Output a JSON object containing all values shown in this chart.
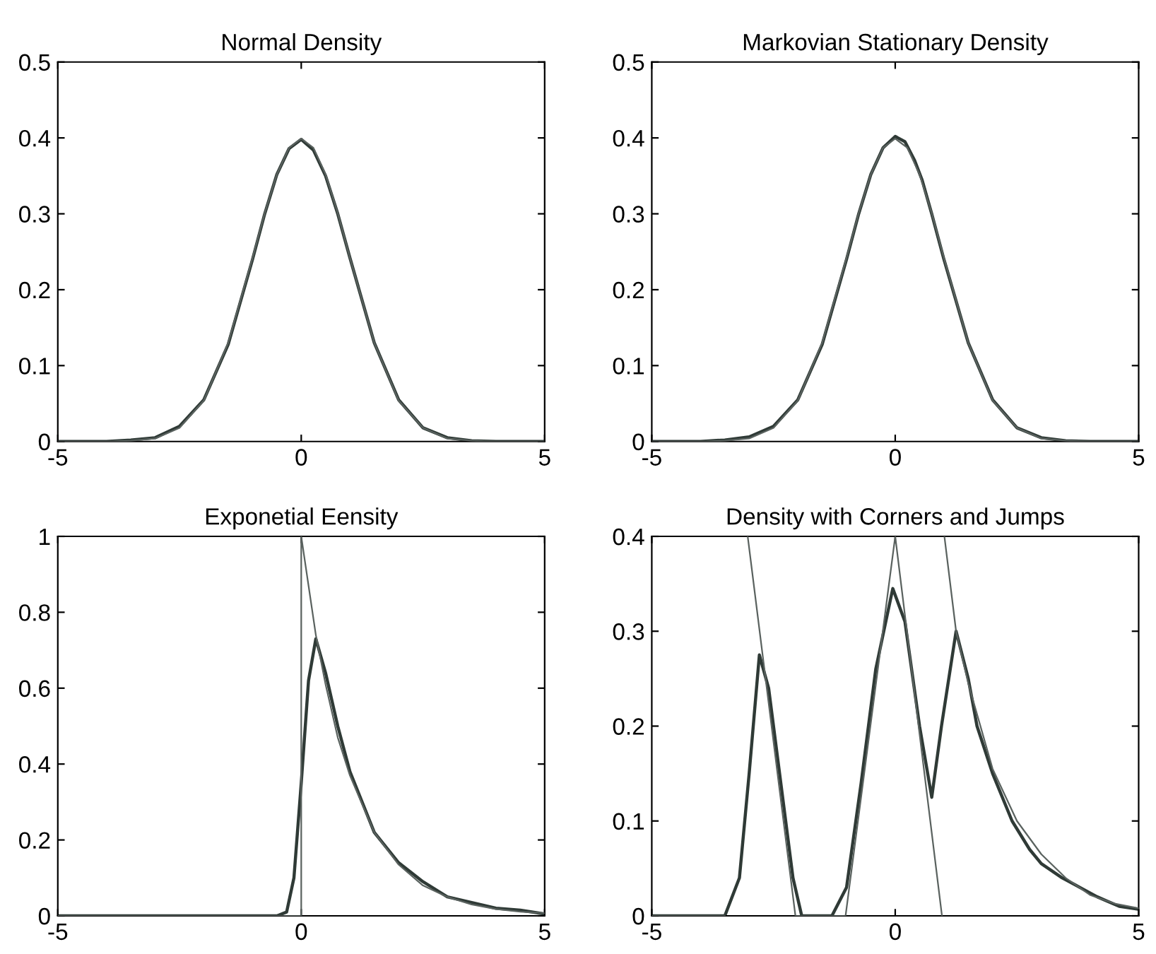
{
  "chart_data": [
    {
      "type": "line",
      "title": "Normal Density",
      "xlim": [
        -5,
        5
      ],
      "ylim": [
        0,
        0.5
      ],
      "xticks": [
        -5,
        0,
        5
      ],
      "yticks": [
        0,
        0.1,
        0.2,
        0.3,
        0.4,
        0.5
      ],
      "series": [
        {
          "color": "#2f3a36",
          "x": [
            -5,
            -4,
            -3.5,
            -3,
            -2.5,
            -2,
            -1.5,
            -1,
            -0.75,
            -0.5,
            -0.25,
            0,
            0.25,
            0.5,
            0.75,
            1,
            1.5,
            2,
            2.5,
            3,
            3.5,
            4,
            5
          ],
          "values": [
            0,
            0,
            0.002,
            0.005,
            0.02,
            0.055,
            0.128,
            0.24,
            0.3,
            0.352,
            0.386,
            0.398,
            0.384,
            0.35,
            0.3,
            0.242,
            0.13,
            0.055,
            0.018,
            0.005,
            0.001,
            0,
            0
          ]
        },
        {
          "color": "#5a625f",
          "x": [
            -5,
            -4,
            -3.5,
            -3,
            -2.5,
            -2,
            -1.5,
            -1,
            -0.75,
            -0.5,
            -0.25,
            0,
            0.25,
            0.5,
            0.75,
            1,
            1.5,
            2,
            2.5,
            3,
            3.5,
            4,
            5
          ],
          "values": [
            0,
            0,
            0.001,
            0.004,
            0.018,
            0.054,
            0.13,
            0.242,
            0.301,
            0.352,
            0.387,
            0.399,
            0.387,
            0.352,
            0.301,
            0.242,
            0.13,
            0.054,
            0.018,
            0.004,
            0.001,
            0,
            0
          ]
        }
      ]
    },
    {
      "type": "line",
      "title": "Markovian Stationary Density",
      "xlim": [
        -5,
        5
      ],
      "ylim": [
        0,
        0.5
      ],
      "xticks": [
        -5,
        0,
        5
      ],
      "yticks": [
        0,
        0.1,
        0.2,
        0.3,
        0.4,
        0.5
      ],
      "series": [
        {
          "color": "#2f3a36",
          "x": [
            -5,
            -4,
            -3.5,
            -3,
            -2.5,
            -2,
            -1.5,
            -1,
            -0.75,
            -0.5,
            -0.25,
            0,
            0.2,
            0.4,
            0.55,
            0.75,
            1,
            1.5,
            2,
            2.5,
            3,
            3.5,
            4,
            5
          ],
          "values": [
            0,
            0,
            0.002,
            0.006,
            0.02,
            0.055,
            0.128,
            0.24,
            0.3,
            0.352,
            0.387,
            0.402,
            0.395,
            0.37,
            0.345,
            0.3,
            0.24,
            0.13,
            0.055,
            0.018,
            0.005,
            0.001,
            0,
            0
          ]
        },
        {
          "color": "#5a625f",
          "x": [
            -5,
            -4,
            -3.5,
            -3,
            -2.5,
            -2,
            -1.5,
            -1,
            -0.75,
            -0.5,
            -0.25,
            0,
            0.25,
            0.5,
            0.75,
            1,
            1.5,
            2,
            2.5,
            3,
            3.5,
            4,
            5
          ],
          "values": [
            0,
            0,
            0.001,
            0.004,
            0.018,
            0.054,
            0.13,
            0.242,
            0.301,
            0.352,
            0.387,
            0.399,
            0.387,
            0.352,
            0.301,
            0.242,
            0.13,
            0.054,
            0.018,
            0.004,
            0.001,
            0,
            0
          ]
        }
      ]
    },
    {
      "type": "line",
      "title": "Exponetial Eensity",
      "xlim": [
        -5,
        5
      ],
      "ylim": [
        0,
        1
      ],
      "xticks": [
        -5,
        0,
        5
      ],
      "yticks": [
        0,
        0.2,
        0.4,
        0.6,
        0.8,
        1
      ],
      "series": [
        {
          "color": "#2f3a36",
          "x": [
            -5,
            -0.5,
            -0.3,
            -0.15,
            0,
            0.15,
            0.3,
            0.5,
            0.75,
            1,
            1.5,
            2,
            2.5,
            3,
            3.5,
            4,
            4.5,
            5
          ],
          "values": [
            0,
            0,
            0.01,
            0.1,
            0.35,
            0.62,
            0.73,
            0.64,
            0.5,
            0.38,
            0.22,
            0.14,
            0.09,
            0.05,
            0.035,
            0.02,
            0.015,
            0.005
          ]
        },
        {
          "color": "#5a625f",
          "x": [
            -5,
            0,
            0,
            0.3,
            0.5,
            0.75,
            1,
            1.5,
            2,
            2.5,
            3,
            3.5,
            4,
            4.5,
            5
          ],
          "values": [
            0,
            0,
            1,
            0.74,
            0.61,
            0.47,
            0.37,
            0.22,
            0.135,
            0.08,
            0.05,
            0.03,
            0.018,
            0.011,
            0.007
          ]
        }
      ]
    },
    {
      "type": "line",
      "title": "Density with Corners and Jumps",
      "xlim": [
        -5,
        5
      ],
      "ylim": [
        0,
        0.4
      ],
      "xticks": [
        -5,
        0,
        5
      ],
      "yticks": [
        0,
        0.1,
        0.2,
        0.3,
        0.4
      ],
      "series": [
        {
          "color": "#2f3a36",
          "x": [
            -5,
            -3.5,
            -3.2,
            -3,
            -2.79,
            -2.6,
            -2.3,
            -2.1,
            -1.92,
            -1.3,
            -1,
            -0.7,
            -0.4,
            -0.05,
            0.2,
            0.5,
            0.75,
            0.95,
            1.25,
            1.5,
            1.68,
            2,
            2.4,
            2.76,
            3,
            3.43,
            4.15,
            4.6,
            5
          ],
          "values": [
            0,
            0,
            0.04,
            0.15,
            0.275,
            0.24,
            0.12,
            0.04,
            0,
            0,
            0.03,
            0.14,
            0.26,
            0.345,
            0.31,
            0.2,
            0.125,
            0.2,
            0.3,
            0.25,
            0.2,
            0.15,
            0.1,
            0.07,
            0.055,
            0.04,
            0.02,
            0.01,
            0.007
          ]
        },
        {
          "color": "#5a625f",
          "x": [
            -5,
            -3.5,
            null,
            -3.03,
            -2.05,
            -1.02,
            0,
            0.96,
            null,
            1.01,
            1.25,
            1.5,
            2,
            2.5,
            3,
            3.5,
            4,
            4.5,
            5
          ],
          "values": [
            0,
            0,
            null,
            0.4,
            0,
            0,
            0.4,
            0,
            null,
            0.4,
            0.3,
            0.245,
            0.155,
            0.1,
            0.065,
            0.04,
            0.022,
            0.013,
            0.008
          ]
        }
      ]
    }
  ]
}
